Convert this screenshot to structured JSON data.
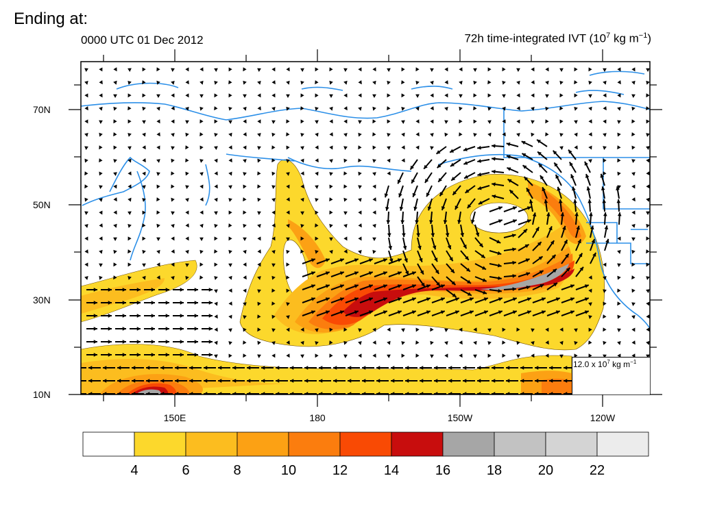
{
  "slide_heading": "Ending at:",
  "map": {
    "time_label": "0000 UTC 01 Dec 2012",
    "field_label_main": "72h time-integrated IVT (10",
    "field_label_exp": "7",
    "field_label_unit": " kg m",
    "field_label_unit_exp": "−1",
    "field_label_close": ")",
    "lat_labels": [
      "70N",
      "50N",
      "30N",
      "10N"
    ],
    "lon_labels": [
      "150E",
      "180",
      "150W",
      "120W"
    ],
    "reference_vector": {
      "value": "12.0 x 10",
      "exp": "7",
      "unit": " kg m",
      "unit_exp": "−1"
    }
  },
  "colorbar": {
    "labels": [
      "4",
      "6",
      "8",
      "10",
      "12",
      "14",
      "16",
      "18",
      "20",
      "22"
    ],
    "colors": [
      "#ffffff",
      "#fcd82c",
      "#fcbd1f",
      "#fca114",
      "#fb7d0e",
      "#f94a04",
      "#c80d0d",
      "#a6a6a6",
      "#c2c2c2",
      "#d4d4d4",
      "#ececec"
    ]
  },
  "colors": {
    "coastline": "#2b8fe8",
    "arrow": "#000000"
  }
}
